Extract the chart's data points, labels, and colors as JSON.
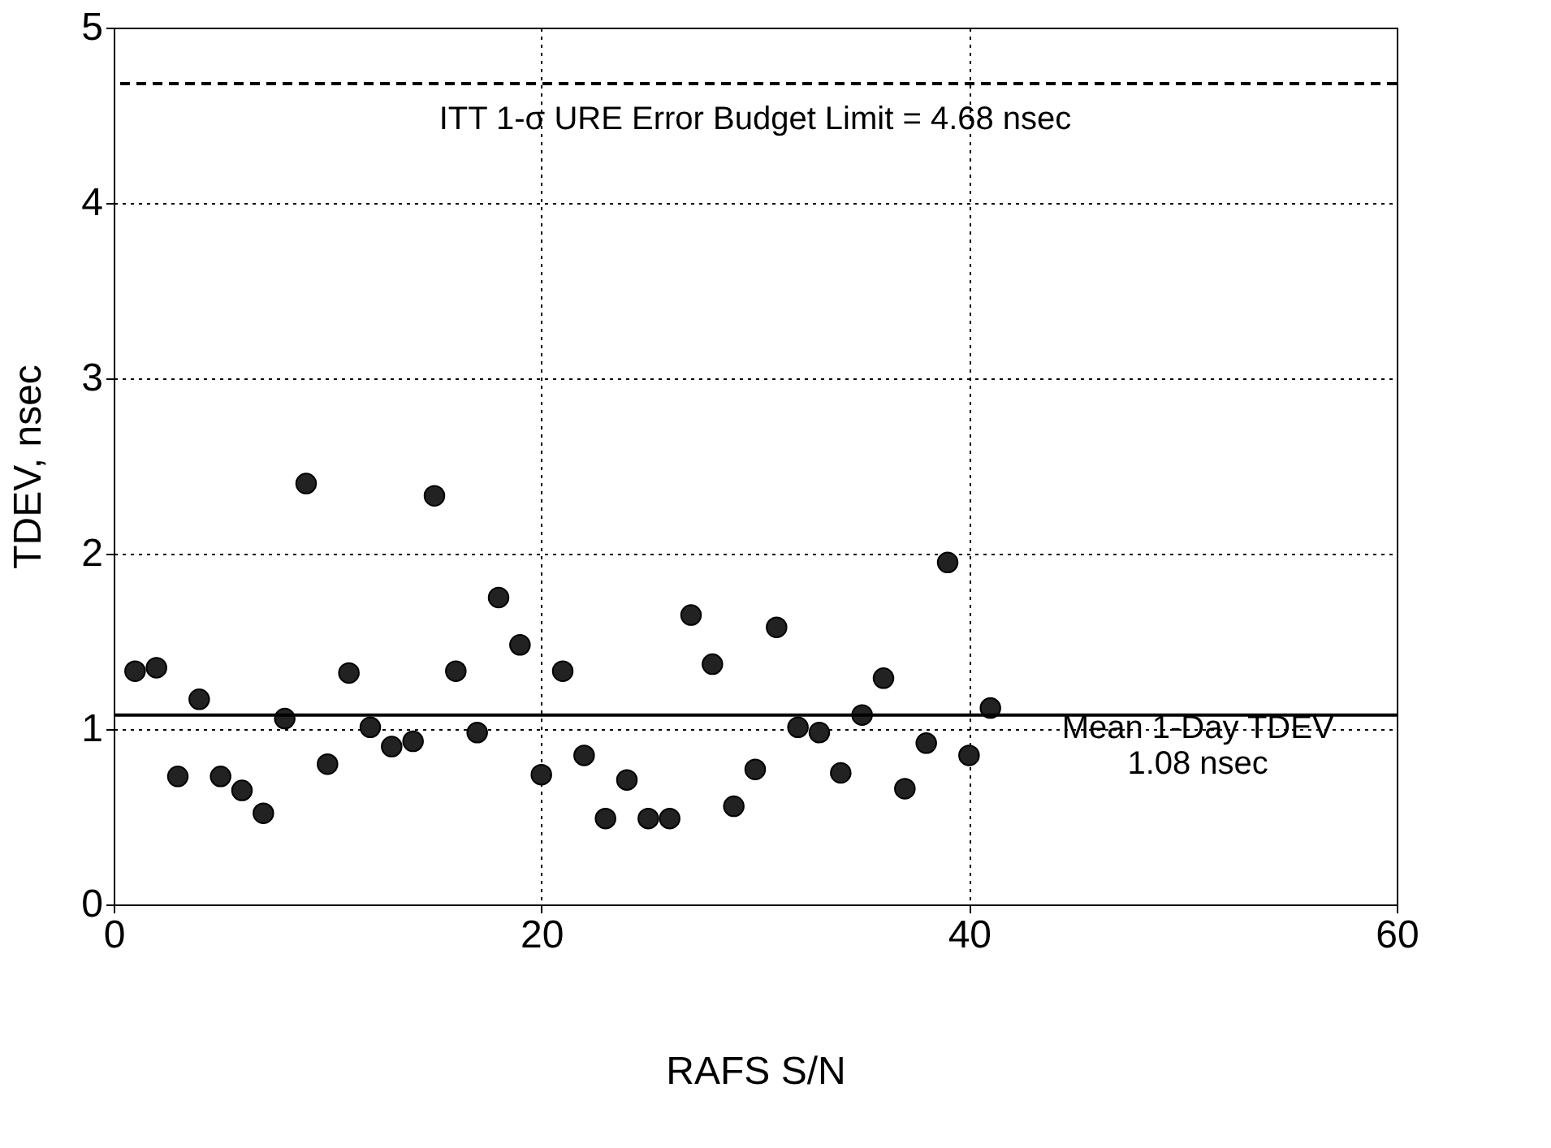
{
  "chart_data": {
    "type": "scatter",
    "xlabel": "RAFS S/N",
    "ylabel": "TDEV, nsec",
    "x": [
      1,
      2,
      3,
      4,
      5,
      6,
      7,
      8,
      9,
      10,
      11,
      12,
      13,
      14,
      15,
      16,
      17,
      18,
      19,
      20,
      21,
      22,
      23,
      24,
      25,
      26,
      27,
      28,
      29,
      30,
      31,
      32,
      33,
      34,
      35,
      36,
      37,
      38,
      39,
      40,
      41
    ],
    "series": [
      {
        "color": "#222222",
        "values": [
          1.33,
          1.35,
          0.73,
          1.17,
          0.73,
          0.65,
          0.52,
          1.06,
          2.4,
          0.8,
          1.32,
          1.01,
          0.9,
          0.93,
          2.33,
          1.33,
          0.98,
          1.75,
          1.48,
          0.74,
          1.33,
          0.85,
          0.49,
          0.71,
          0.49,
          0.49,
          1.65,
          1.37,
          0.56,
          0.77,
          1.58,
          1.01,
          0.98,
          0.75,
          1.08,
          1.29,
          0.66,
          0.92,
          1.95,
          0.85,
          1.12
        ]
      }
    ],
    "xlim": [
      0,
      60
    ],
    "xticks": [
      0,
      20,
      40,
      60
    ],
    "ylim": [
      0,
      5
    ],
    "yticks": [
      0,
      1,
      2,
      3,
      4,
      5
    ],
    "ref_lines": [
      {
        "axis": "y",
        "value": 4.68,
        "label": "ITT 1-σ URE Error Budget Limit = 4.68 nsec",
        "line_style": "dashed",
        "color": "#000000"
      },
      {
        "axis": "y",
        "value": 1.08,
        "label": "Mean 1-Day TDEV\n1.08 nsec",
        "line_style": "solid",
        "color": "#000000"
      }
    ],
    "grid": true,
    "marker": "circle"
  }
}
